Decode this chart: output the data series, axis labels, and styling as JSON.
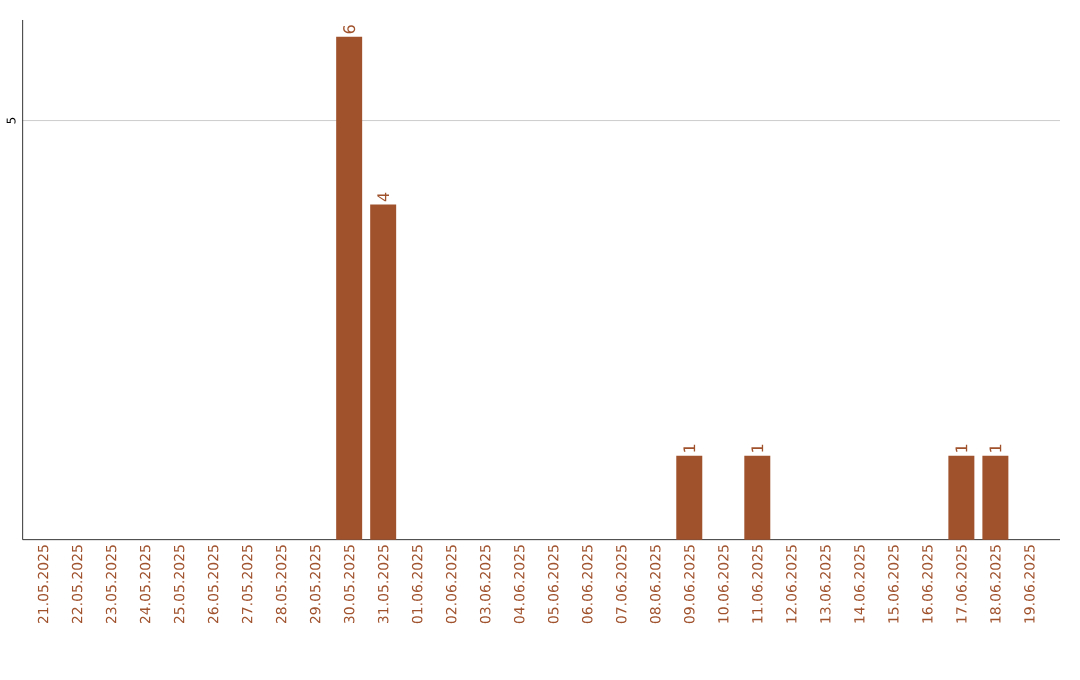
{
  "chart_data": {
    "type": "bar",
    "categories": [
      "21.05.2025",
      "22.05.2025",
      "23.05.2025",
      "24.05.2025",
      "25.05.2025",
      "26.05.2025",
      "27.05.2025",
      "28.05.2025",
      "29.05.2025",
      "30.05.2025",
      "31.05.2025",
      "01.06.2025",
      "02.06.2025",
      "03.06.2025",
      "04.06.2025",
      "05.06.2025",
      "06.06.2025",
      "07.06.2025",
      "08.06.2025",
      "09.06.2025",
      "10.06.2025",
      "11.06.2025",
      "12.06.2025",
      "13.06.2025",
      "14.06.2025",
      "15.06.2025",
      "16.06.2025",
      "17.06.2025",
      "18.06.2025",
      "19.06.2025"
    ],
    "values": [
      0,
      0,
      0,
      0,
      0,
      0,
      0,
      0,
      0,
      6,
      4,
      0,
      0,
      0,
      0,
      0,
      0,
      0,
      0,
      1,
      0,
      1,
      0,
      0,
      0,
      0,
      0,
      1,
      1,
      0
    ],
    "value_labels": [
      null,
      null,
      null,
      null,
      null,
      null,
      null,
      null,
      null,
      "6",
      "4",
      null,
      null,
      null,
      null,
      null,
      null,
      null,
      null,
      "1",
      null,
      "1",
      null,
      null,
      null,
      null,
      null,
      "1",
      "1",
      null
    ],
    "color": "#a0522d",
    "ylim": [
      0,
      6.2
    ],
    "yticks": [
      5
    ],
    "grid": "y"
  }
}
